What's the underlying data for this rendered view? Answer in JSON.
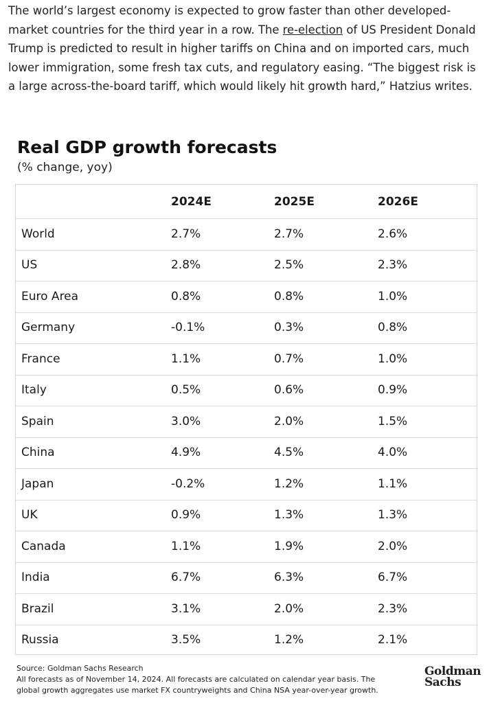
{
  "article": {
    "paragraph": {
      "before": "The world’s largest economy is expected to grow faster than other developed-market countries for the third year in a row. The ",
      "link": "re-election",
      "after": " of US President Donald Trump is predicted to result in higher tariffs on China and on imported cars, much lower immigration, some fresh tax cuts, and regulatory easing. “The biggest risk is a large across-the-board tariff, which would likely hit growth hard,” Hatzius writes."
    }
  },
  "figure": {
    "title": "Real GDP growth forecasts",
    "subtitle": "(% change, yoy)",
    "table": {
      "headers": [
        "2024E",
        "2025E",
        "2026E"
      ],
      "rows": [
        {
          "label": "World",
          "values": [
            "2.7%",
            "2.7%",
            "2.6%"
          ]
        },
        {
          "label": "US",
          "values": [
            "2.8%",
            "2.5%",
            "2.3%"
          ]
        },
        {
          "label": "Euro Area",
          "values": [
            "0.8%",
            "0.8%",
            "1.0%"
          ]
        },
        {
          "label": "Germany",
          "values": [
            "-0.1%",
            "0.3%",
            "0.8%"
          ]
        },
        {
          "label": "France",
          "values": [
            "1.1%",
            "0.7%",
            "1.0%"
          ]
        },
        {
          "label": "Italy",
          "values": [
            "0.5%",
            "0.6%",
            "0.9%"
          ]
        },
        {
          "label": "Spain",
          "values": [
            "3.0%",
            "2.0%",
            "1.5%"
          ]
        },
        {
          "label": "China",
          "values": [
            "4.9%",
            "4.5%",
            "4.0%"
          ]
        },
        {
          "label": "Japan",
          "values": [
            "-0.2%",
            "1.2%",
            "1.1%"
          ]
        },
        {
          "label": "UK",
          "values": [
            "0.9%",
            "1.3%",
            "1.3%"
          ]
        },
        {
          "label": "Canada",
          "values": [
            "1.1%",
            "1.9%",
            "2.0%"
          ]
        },
        {
          "label": "India",
          "values": [
            "6.7%",
            "6.3%",
            "6.7%"
          ]
        },
        {
          "label": "Brazil",
          "values": [
            "3.1%",
            "2.0%",
            "2.3%"
          ]
        },
        {
          "label": "Russia",
          "values": [
            "3.5%",
            "1.2%",
            "2.1%"
          ]
        }
      ]
    },
    "source": "Source: Goldman Sachs Research",
    "notes": [
      "All forecasts as of November 14, 2024. All forecasts are calculated on calendar year basis. The",
      "global growth aggregates use market FX countryweights and China NSA year-over-year growth."
    ],
    "logo": {
      "line1": "Goldman",
      "line2": "Sachs"
    }
  }
}
